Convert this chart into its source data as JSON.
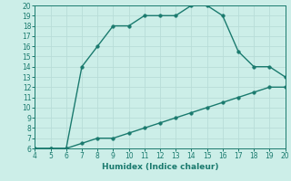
{
  "xlabel": "Humidex (Indice chaleur)",
  "upper_line_x": [
    4,
    5,
    6,
    7,
    8,
    9,
    10,
    11,
    12,
    13,
    14,
    15,
    16,
    17,
    18,
    19,
    20
  ],
  "upper_line_y": [
    6,
    6,
    6,
    14,
    16,
    18,
    18,
    19,
    19,
    19,
    20,
    20,
    19,
    15.5,
    14,
    14,
    13
  ],
  "lower_line_x": [
    4,
    5,
    6,
    7,
    8,
    9,
    10,
    11,
    12,
    13,
    14,
    15,
    16,
    17,
    18,
    19,
    20
  ],
  "lower_line_y": [
    6,
    6,
    6,
    6.5,
    7,
    7,
    7.5,
    8,
    8.5,
    9,
    9.5,
    10,
    10.5,
    11,
    11.5,
    12,
    12
  ],
  "line_color": "#1a7a6e",
  "bg_color": "#cceee8",
  "grid_major_color": "#b8ddd8",
  "grid_minor_color": "#d8eeea",
  "xlim": [
    4,
    20
  ],
  "ylim": [
    6,
    20
  ],
  "xticks": [
    4,
    5,
    6,
    7,
    8,
    9,
    10,
    11,
    12,
    13,
    14,
    15,
    16,
    17,
    18,
    19,
    20
  ],
  "yticks": [
    6,
    7,
    8,
    9,
    10,
    11,
    12,
    13,
    14,
    15,
    16,
    17,
    18,
    19,
    20
  ],
  "marker": "o",
  "markersize": 2.5,
  "linewidth": 1.0,
  "tick_fontsize": 5.5,
  "xlabel_fontsize": 6.5
}
